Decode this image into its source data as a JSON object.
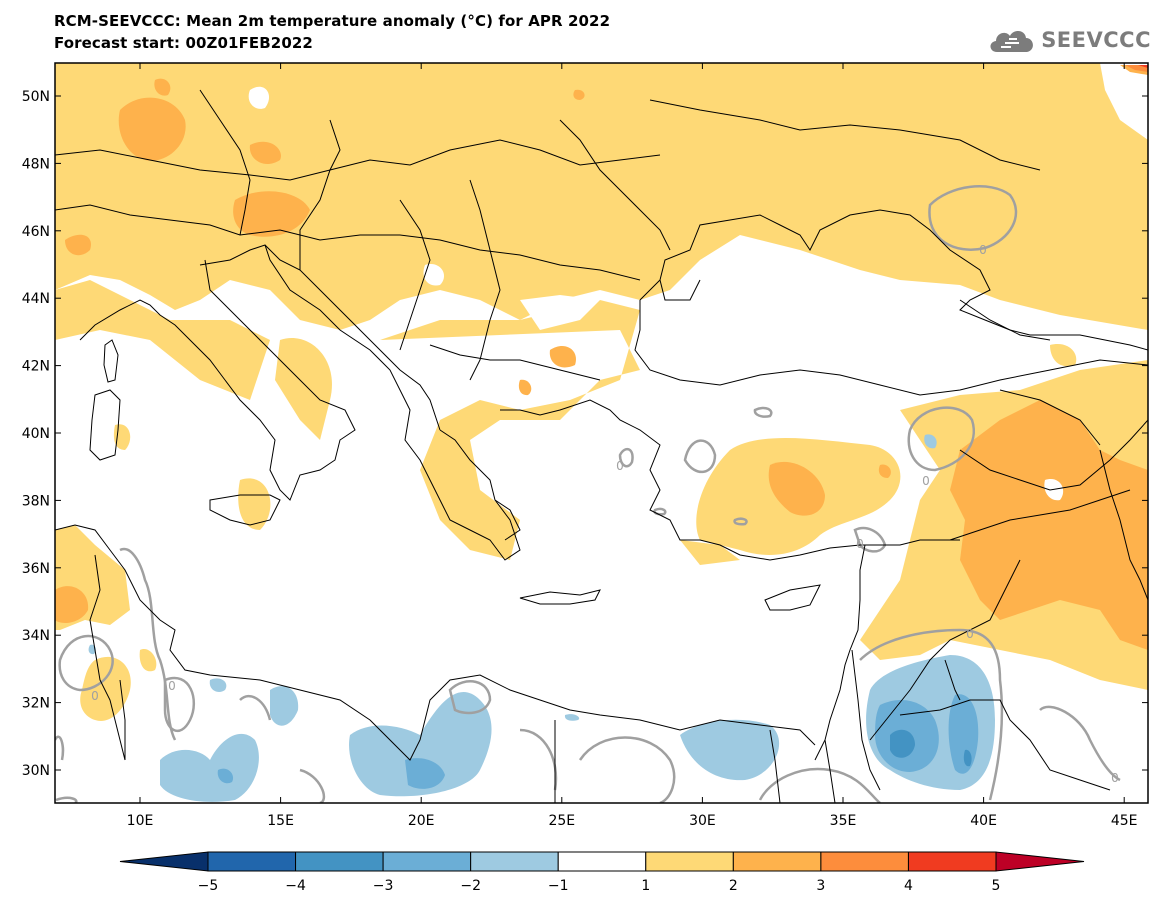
{
  "header": {
    "title_line1": "RCM-SEEVCCC: Mean 2m temperature anomaly (°C) for APR 2022",
    "title_line2": "Forecast start: 00Z01FEB2022"
  },
  "logo": {
    "text": "SEEVCCC",
    "icon": "cloud-logo-icon"
  },
  "map": {
    "lat_labels": [
      "50N",
      "48N",
      "46N",
      "44N",
      "42N",
      "40N",
      "38N",
      "36N",
      "34N",
      "32N",
      "30N"
    ],
    "lon_labels": [
      "10E",
      "15E",
      "20E",
      "25E",
      "30E",
      "35E",
      "40E",
      "45E"
    ],
    "contour_labels": [
      "0",
      "0",
      "0",
      "0",
      "0",
      "0",
      "0",
      "0"
    ],
    "colors": {
      "land_outline": "#000000",
      "contour": "#a0a0a0",
      "neutral": "#ffffff"
    }
  },
  "colorbar": {
    "tick_labels": [
      "-5",
      "-4",
      "-3",
      "-2",
      "-1",
      "1",
      "2",
      "3",
      "4",
      "5"
    ],
    "colors": [
      "#08306b",
      "#2166ac",
      "#4393c3",
      "#6baed6",
      "#9ecae1",
      "#ffffff",
      "#fed976",
      "#feb24c",
      "#fd8d3c",
      "#f03b20",
      "#bd0026"
    ]
  }
}
